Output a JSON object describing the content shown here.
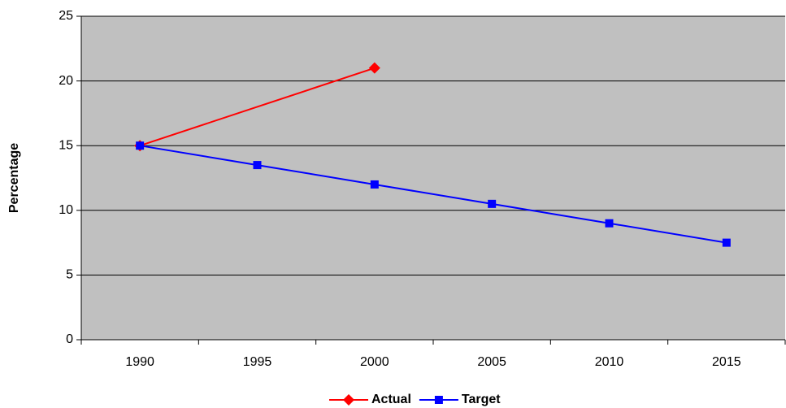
{
  "chart_data": {
    "type": "line",
    "y_label": "Percentage",
    "x": [
      1990,
      1995,
      2000,
      2005,
      2010,
      2015
    ],
    "series": [
      {
        "name": "Actual",
        "color": "#ff0000",
        "marker": "diamond",
        "x": [
          1990,
          2000
        ],
        "values": [
          15,
          21
        ]
      },
      {
        "name": "Target",
        "color": "#0000ff",
        "marker": "square",
        "x": [
          1990,
          1995,
          2000,
          2005,
          2010,
          2015
        ],
        "values": [
          15,
          13.5,
          12,
          10.5,
          9,
          7.5
        ]
      }
    ],
    "ylim": [
      0,
      25
    ],
    "yticks": [
      0,
      5,
      10,
      15,
      20,
      25
    ],
    "grid": true,
    "background": "#c0c0c0",
    "legend": "bottom"
  }
}
